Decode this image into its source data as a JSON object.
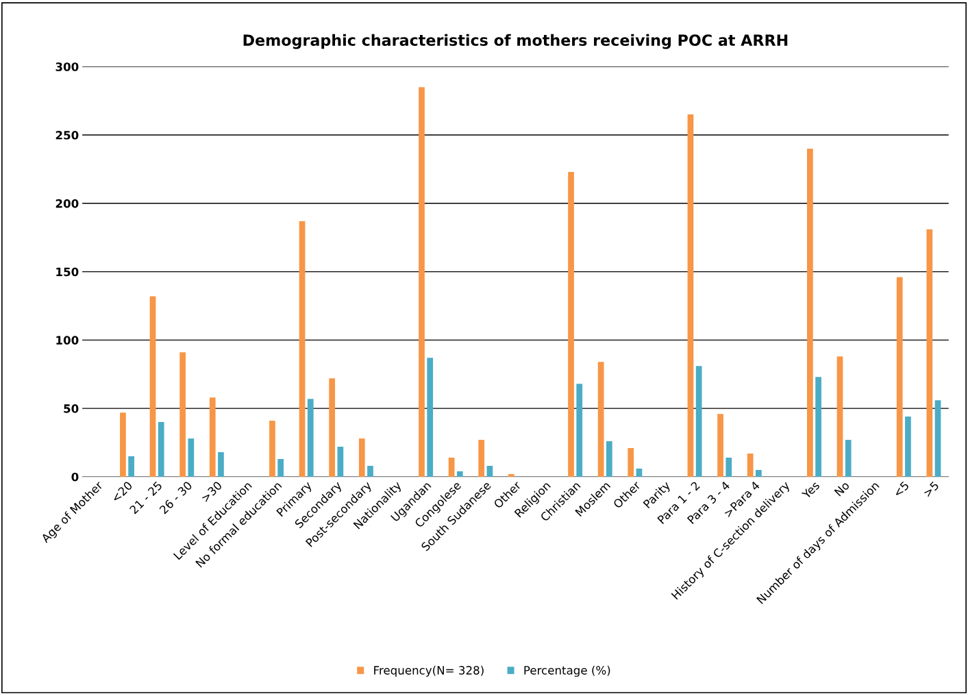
{
  "chart_data": {
    "type": "bar",
    "title": "Demographic characteristics of mothers receiving POC at ARRH",
    "categories": [
      "Age of Mother",
      "<20",
      "21 - 25",
      "26 - 30",
      ">30",
      "Level of Education",
      "No formal education",
      "Primary",
      "Secondary",
      "Post-secondary",
      "Nationality",
      "Ugandan",
      "Congolese",
      "South Sudanese",
      "Other",
      "Religion",
      "Christian",
      "Moslem",
      "Other",
      "Parity",
      "Para 1 - 2",
      "Para 3 - 4",
      ">Para 4",
      "History of C-section delivery",
      "Yes",
      "No",
      "Number of days of Admission",
      "<5",
      ">5"
    ],
    "series": [
      {
        "name": "Frequency(N= 328)",
        "color": "#f79646",
        "values": [
          null,
          47,
          132,
          91,
          58,
          null,
          41,
          187,
          72,
          28,
          null,
          285,
          14,
          27,
          2,
          null,
          223,
          84,
          21,
          null,
          265,
          46,
          17,
          null,
          240,
          88,
          null,
          146,
          181
        ]
      },
      {
        "name": "Percentage (%)",
        "color": "#4bacc6",
        "values": [
          null,
          15,
          40,
          28,
          18,
          null,
          13,
          57,
          22,
          8,
          null,
          87,
          4,
          8,
          null,
          null,
          68,
          26,
          6,
          null,
          81,
          14,
          5,
          null,
          73,
          27,
          null,
          44,
          56
        ]
      }
    ],
    "ylim": [
      0,
      300
    ],
    "yticks": [
      0,
      50,
      100,
      150,
      200,
      250,
      300
    ],
    "grid": "y",
    "legend": "bottom"
  }
}
